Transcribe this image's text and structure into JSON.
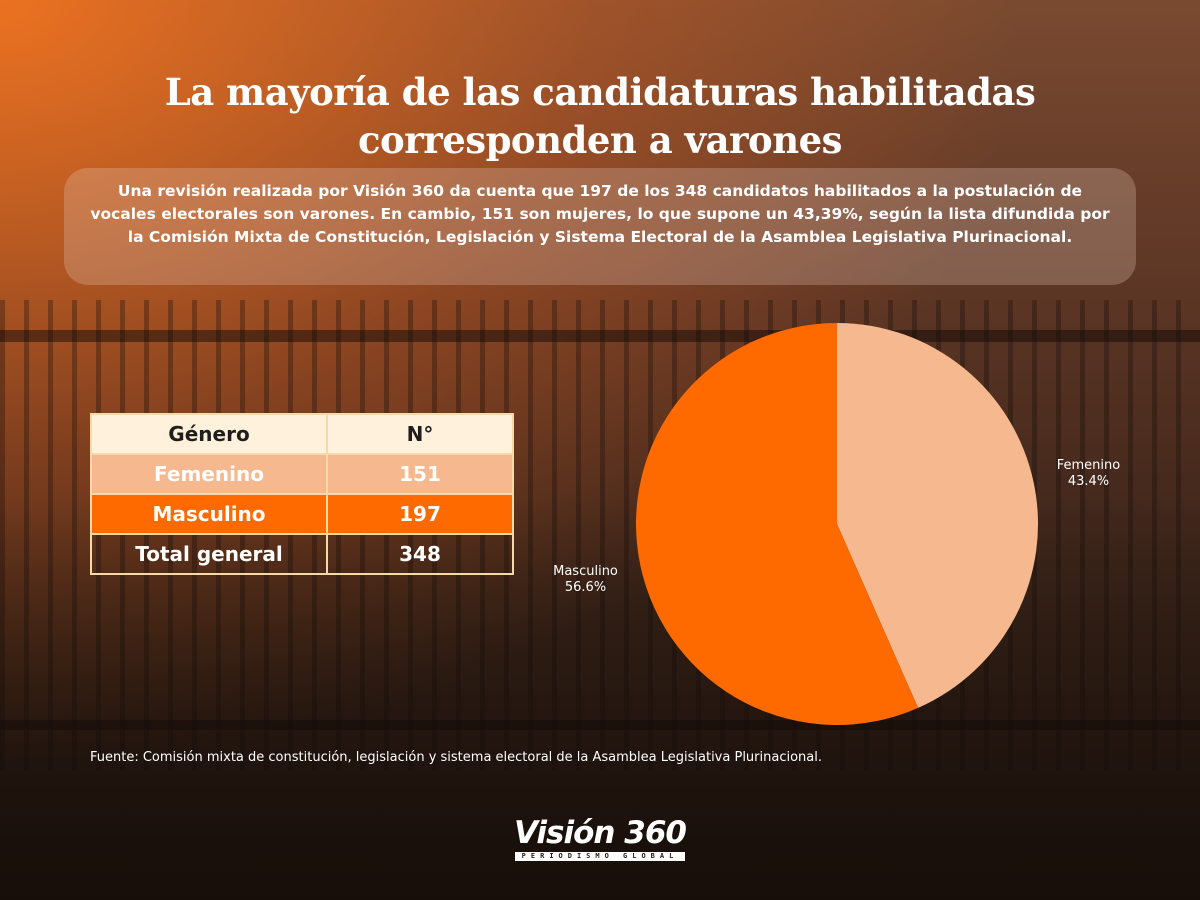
{
  "title": "La mayoría de las candidaturas habilitadas corresponden a varones",
  "intro": "Una revisión realizada por Visión 360 da cuenta que 197 de los 348 candidatos habilitados a la postulación de vocales electorales son varones. En cambio, 151 son mujeres, lo que supone un 43,39%, según la lista difundida por la Comisión Mixta de Constitución, Legislación y Sistema Electoral de la Asamblea Legislativa Plurinacional.",
  "table": {
    "headers": [
      "Género",
      "N°"
    ],
    "rows": [
      {
        "label": "Femenino",
        "value": "151"
      },
      {
        "label": "Masculino",
        "value": "197"
      },
      {
        "label": "Total general",
        "value": "348"
      }
    ]
  },
  "chart_data": {
    "type": "pie",
    "slices": [
      {
        "label": "Femenino",
        "value": 151,
        "percent_label": "43.4%",
        "color": "#f6b88f"
      },
      {
        "label": "Masculino",
        "value": 197,
        "percent_label": "56.6%",
        "color": "#ff6a00"
      }
    ]
  },
  "source": "Fuente: Comisión mixta de constitución, legislación y sistema electoral de la Asamblea Legislativa Plurinacional.",
  "logo": {
    "main": "Visión 360",
    "sub": "PERIODISMO GLOBAL"
  },
  "colors": {
    "accent": "#ff6a00",
    "light_accent": "#f6b88f",
    "table_header": "#fff1dc"
  }
}
